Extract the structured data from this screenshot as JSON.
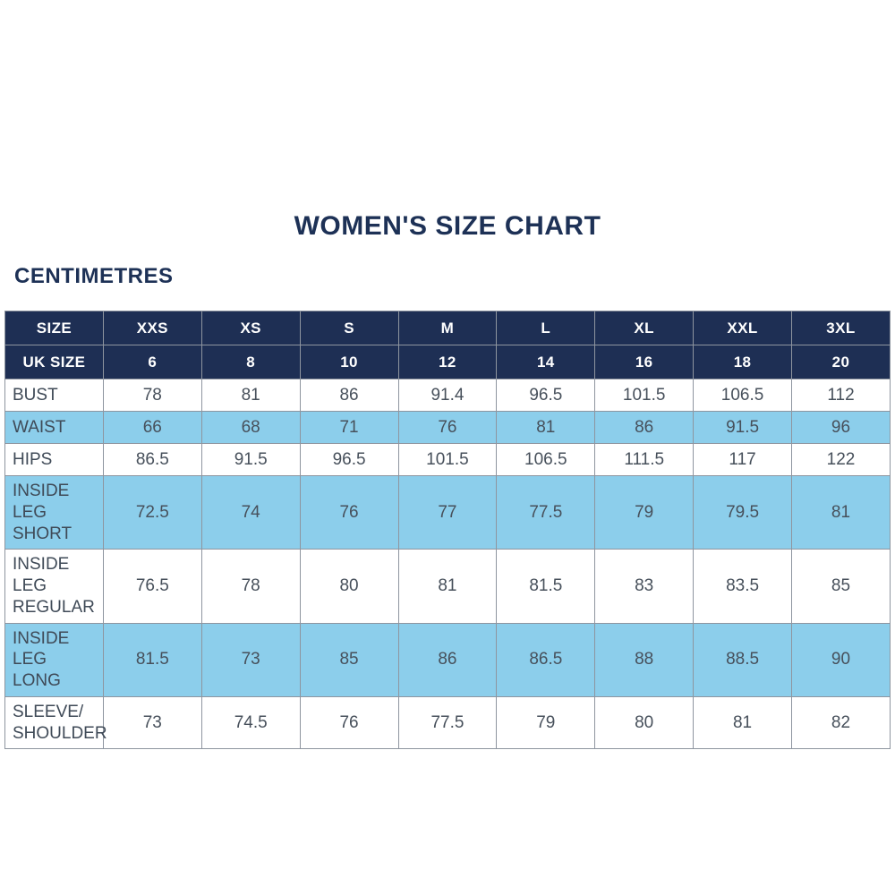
{
  "header": {
    "title": "WOMEN'S SIZE CHART",
    "units_label": "CENTIMETRES"
  },
  "colors": {
    "navy_header": "#1e2f54",
    "light_blue_row": "#8cceeb",
    "title_text": "#1d3156",
    "body_text": "#47505b",
    "border": "#8e959f"
  },
  "chart_data": {
    "type": "table",
    "title": "WOMEN'S SIZE CHART",
    "subtitle": "CENTIMETRES",
    "columns": [
      "SIZE",
      "XXS",
      "XS",
      "S",
      "M",
      "L",
      "XL",
      "XXL",
      "3XL"
    ],
    "rows": [
      [
        "UK SIZE",
        6,
        8,
        10,
        12,
        14,
        16,
        18,
        20
      ],
      [
        "BUST",
        78,
        81,
        86,
        91.4,
        96.5,
        101.5,
        106.5,
        112
      ],
      [
        "WAIST",
        66,
        68,
        71,
        76,
        81,
        86,
        91.5,
        96
      ],
      [
        "HIPS",
        86.5,
        91.5,
        96.5,
        101.5,
        106.5,
        111.5,
        117,
        122
      ],
      [
        "INSIDE LEG SHORT",
        72.5,
        74,
        76,
        77,
        77.5,
        79,
        79.5,
        81
      ],
      [
        "INSIDE LEG REGULAR",
        76.5,
        78,
        80,
        81,
        81.5,
        83,
        83.5,
        85
      ],
      [
        "INSIDE LEG LONG",
        81.5,
        73,
        85,
        86,
        86.5,
        88,
        88.5,
        90
      ],
      [
        "SLEEVE/ SHOULDER",
        73,
        74.5,
        76,
        77.5,
        79,
        80,
        81,
        82
      ]
    ],
    "layout_hints": {
      "header_rows_navy": [
        "SIZE",
        "UK SIZE"
      ],
      "alternating_row_fill": "white / light-blue",
      "grid": true
    }
  }
}
